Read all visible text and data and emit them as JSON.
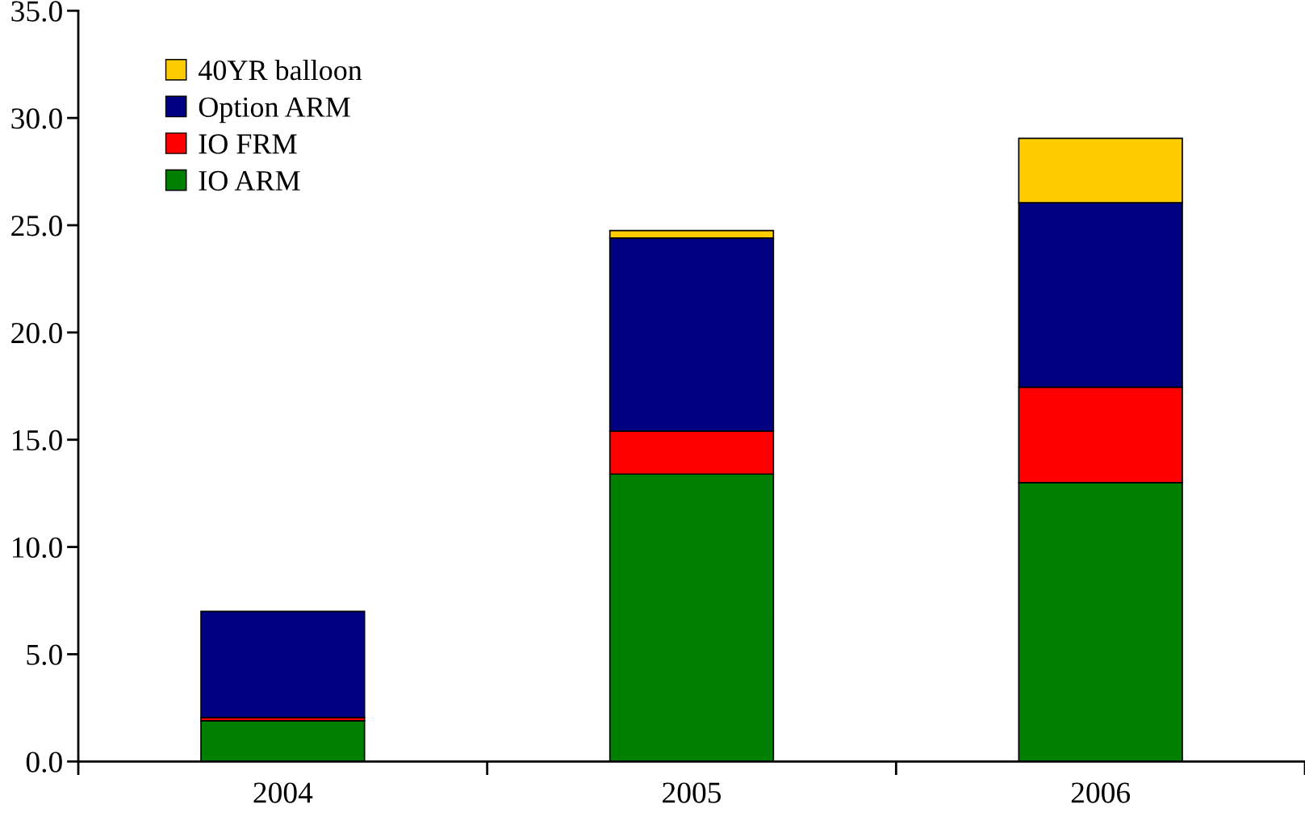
{
  "chart_data": {
    "type": "bar",
    "stacked": true,
    "categories": [
      "2004",
      "2005",
      "2006"
    ],
    "series": [
      {
        "name": "IO ARM",
        "color": "#008000",
        "values": [
          1.9,
          13.4,
          13.0
        ]
      },
      {
        "name": "IO FRM",
        "color": "#ff0000",
        "values": [
          0.15,
          2.0,
          4.45
        ]
      },
      {
        "name": "Option ARM",
        "color": "#000080",
        "values": [
          4.95,
          9.0,
          8.6
        ]
      },
      {
        "name": "40YR balloon",
        "color": "#ffcc00",
        "values": [
          null,
          0.35,
          3.0
        ]
      }
    ],
    "ylim": [
      0,
      35
    ],
    "yticks": [
      {
        "value": 0,
        "label": "0.0"
      },
      {
        "value": 5,
        "label": "5.0"
      },
      {
        "value": 10,
        "label": "10.0"
      },
      {
        "value": 15,
        "label": "15.0"
      },
      {
        "value": 20,
        "label": "20.0"
      },
      {
        "value": 25,
        "label": "25.0"
      },
      {
        "value": 30,
        "label": "30.0"
      },
      {
        "value": 35,
        "label": "35.0"
      }
    ],
    "grid": false,
    "legend": "top left"
  }
}
